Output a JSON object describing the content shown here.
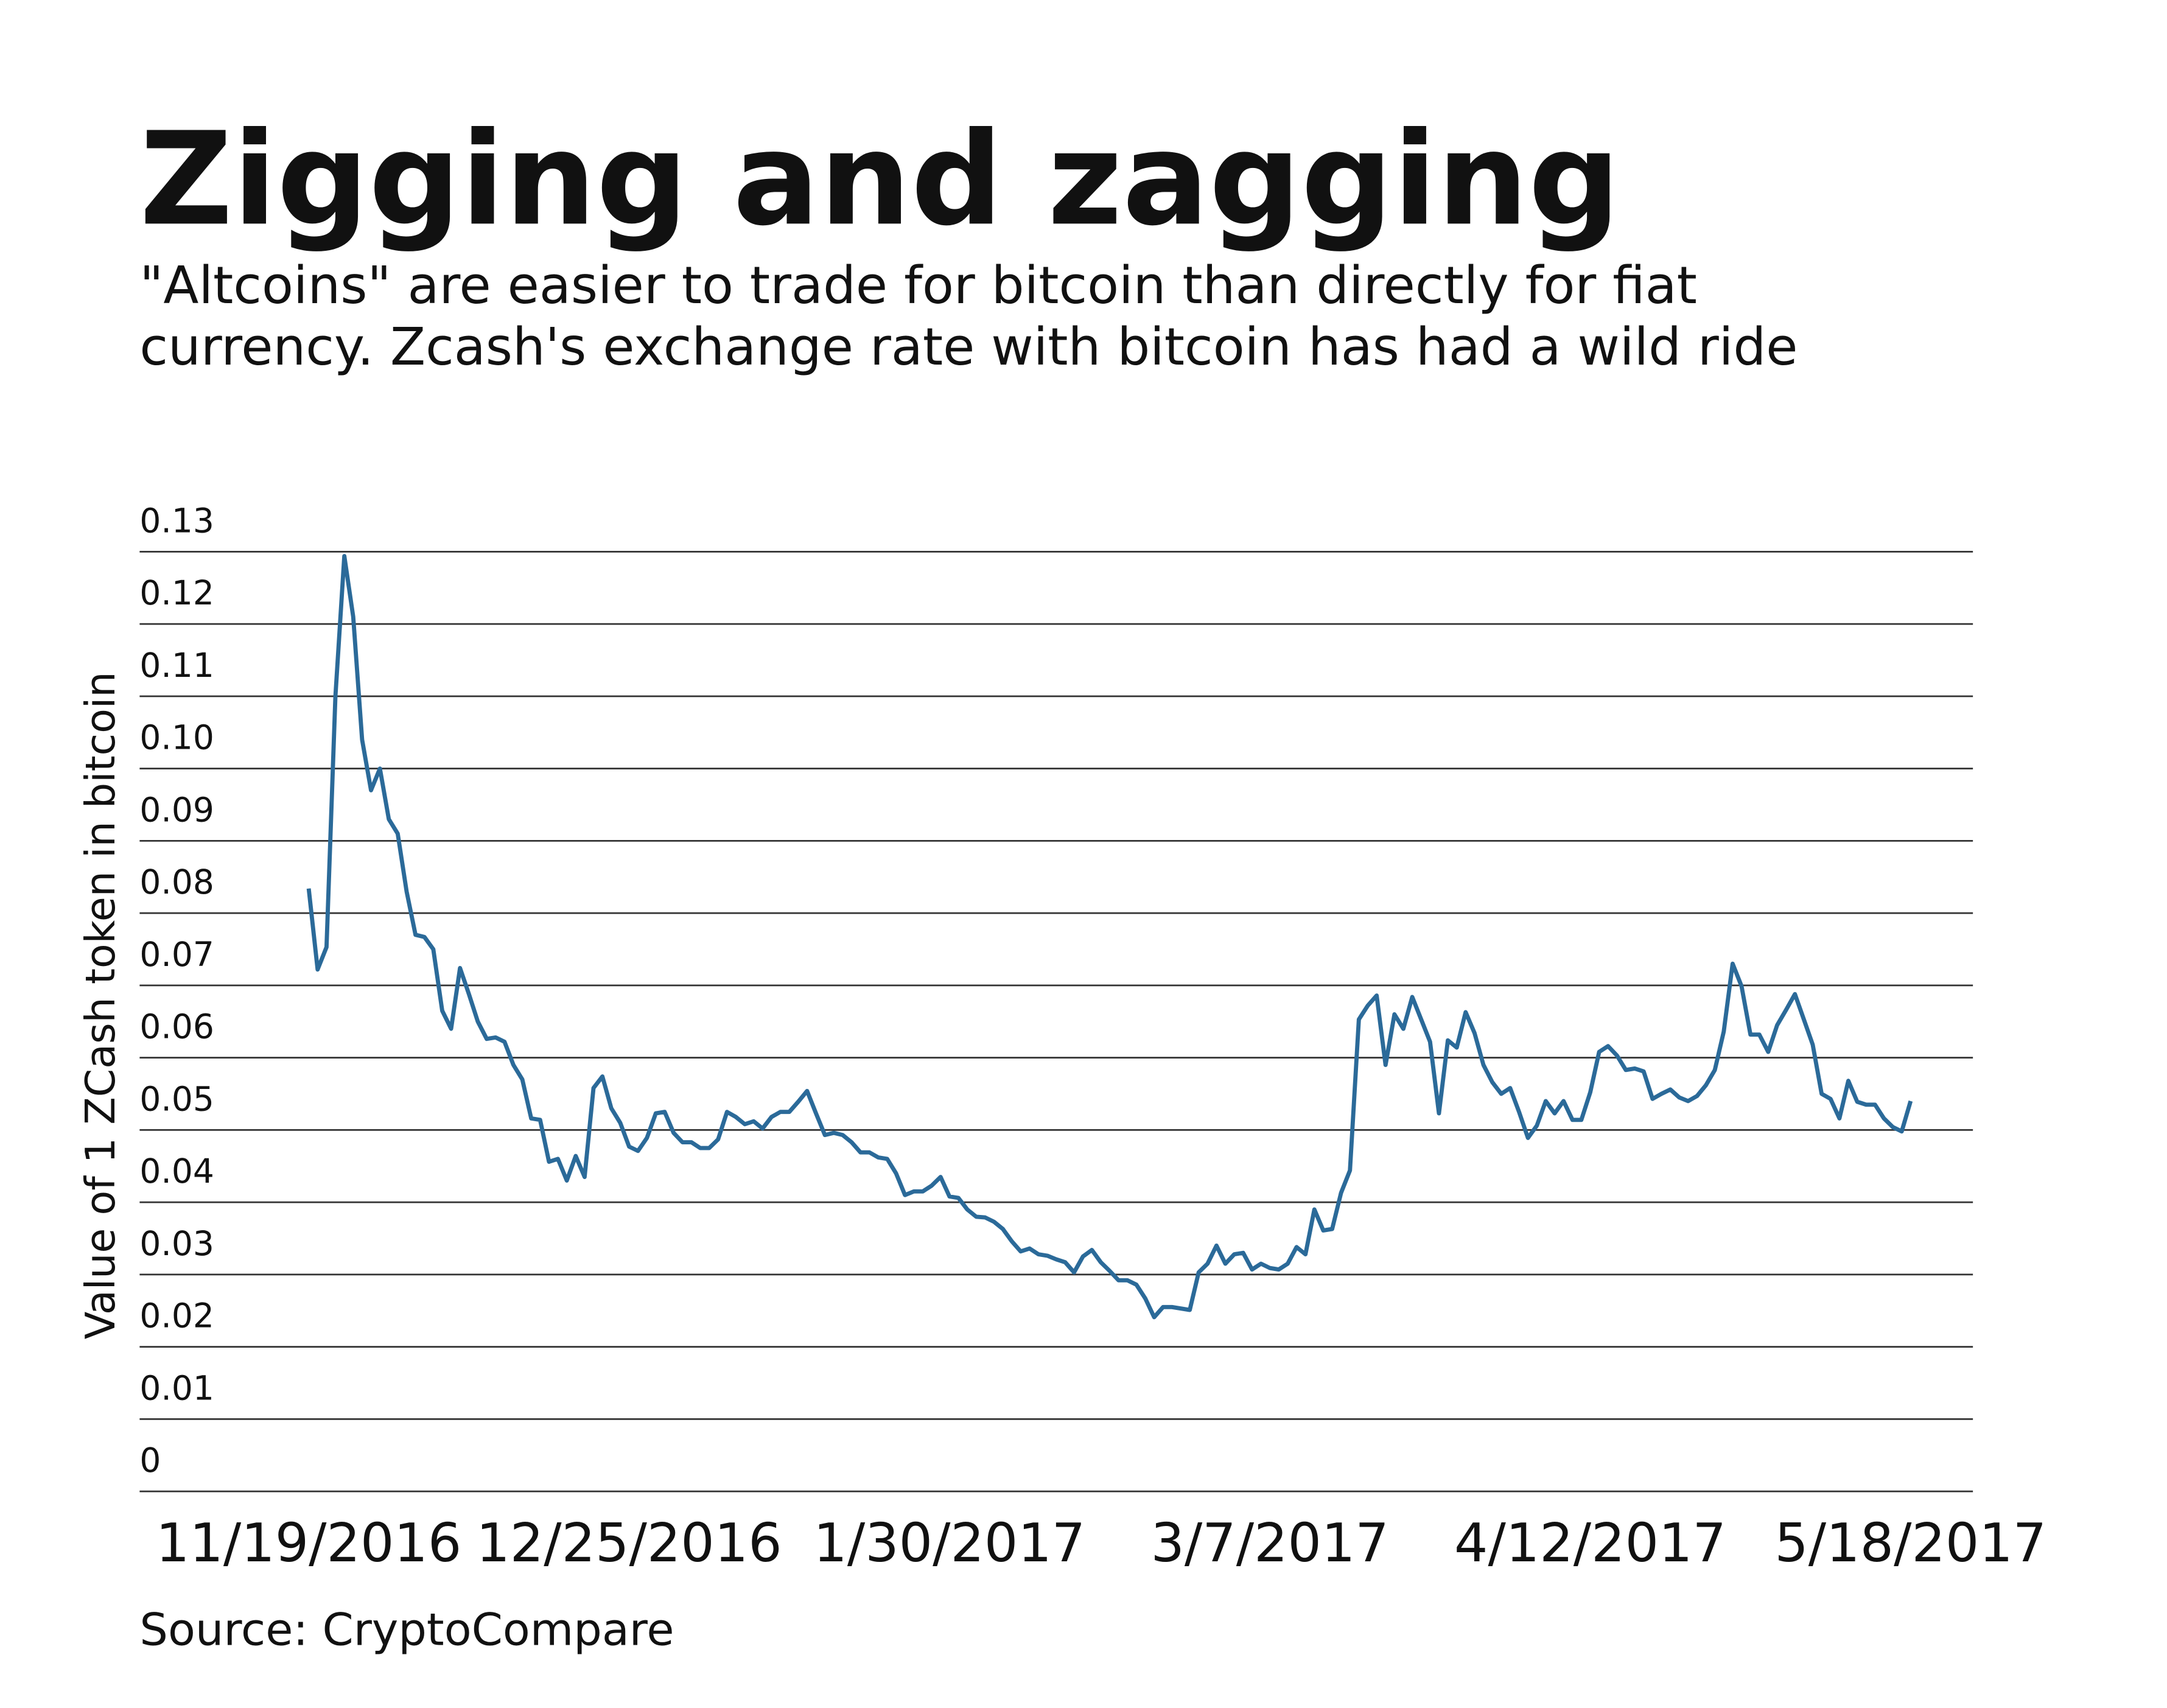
{
  "chart_data": {
    "type": "line",
    "title": "Zigging and zagging",
    "subtitle": [
      "\"Altcoins\" are easier to trade for bitcoin than directly for fiat",
      "currency. Zcash's exchange rate with bitcoin has had a wild ride"
    ],
    "y_label": "Value of 1 ZCash token in bitcoin",
    "source": "Source: CryptoCompare",
    "color": "#2b6a99",
    "grid": true,
    "xlim": [
      "2016-10-31",
      "2017-05-25"
    ],
    "xticks": [
      {
        "value": "2016-11-19",
        "label": "11/19/2016"
      },
      {
        "value": "2016-12-25",
        "label": "12/25/2016"
      },
      {
        "value": "2017-01-30",
        "label": "1/30/2017"
      },
      {
        "value": "2017-03-07",
        "label": "3/7/2017"
      },
      {
        "value": "2017-04-12",
        "label": "4/12/2017"
      },
      {
        "value": "2017-05-18",
        "label": "5/18/2017"
      }
    ],
    "ylim": [
      0,
      0.13
    ],
    "yticks": [
      0,
      0.01,
      0.02,
      0.03,
      0.04,
      0.05,
      0.06,
      0.07,
      0.08,
      0.09,
      {
        "value": 0.1,
        "label": "0.10"
      },
      0.11,
      0.12,
      0.13
    ],
    "x": [
      "2016-11-19",
      "2016-11-20",
      "2016-11-21",
      "2016-11-22",
      "2016-11-23",
      "2016-11-24",
      "2016-11-25",
      "2016-11-26",
      "2016-11-27",
      "2016-11-28",
      "2016-11-29",
      "2016-11-30",
      "2016-12-01",
      "2016-12-02",
      "2016-12-03",
      "2016-12-04",
      "2016-12-05",
      "2016-12-06",
      "2016-12-07",
      "2016-12-08",
      "2016-12-09",
      "2016-12-10",
      "2016-12-11",
      "2016-12-12",
      "2016-12-13",
      "2016-12-14",
      "2016-12-15",
      "2016-12-16",
      "2016-12-17",
      "2016-12-18",
      "2016-12-19",
      "2016-12-20",
      "2016-12-21",
      "2016-12-22",
      "2016-12-23",
      "2016-12-24",
      "2016-12-25",
      "2016-12-26",
      "2016-12-27",
      "2016-12-28",
      "2016-12-29",
      "2016-12-30",
      "2016-12-31",
      "2017-01-01",
      "2017-01-02",
      "2017-01-03",
      "2017-01-04",
      "2017-01-05",
      "2017-01-06",
      "2017-01-07",
      "2017-01-08",
      "2017-01-09",
      "2017-01-10",
      "2017-01-11",
      "2017-01-12",
      "2017-01-13",
      "2017-01-14",
      "2017-01-15",
      "2017-01-16",
      "2017-01-17",
      "2017-01-18",
      "2017-01-19",
      "2017-01-20",
      "2017-01-21",
      "2017-01-22",
      "2017-01-23",
      "2017-01-24",
      "2017-01-25",
      "2017-01-26",
      "2017-01-27",
      "2017-01-28",
      "2017-01-29",
      "2017-01-30",
      "2017-01-31",
      "2017-02-01",
      "2017-02-02",
      "2017-02-03",
      "2017-02-04",
      "2017-02-05",
      "2017-02-06",
      "2017-02-07",
      "2017-02-08",
      "2017-02-09",
      "2017-02-10",
      "2017-02-11",
      "2017-02-12",
      "2017-02-13",
      "2017-02-14",
      "2017-02-15",
      "2017-02-16",
      "2017-02-17",
      "2017-02-18",
      "2017-02-19",
      "2017-02-20",
      "2017-02-21",
      "2017-02-22",
      "2017-02-23",
      "2017-02-24",
      "2017-02-25",
      "2017-02-26",
      "2017-02-27",
      "2017-02-28",
      "2017-03-01",
      "2017-03-02",
      "2017-03-03",
      "2017-03-04",
      "2017-03-05",
      "2017-03-06",
      "2017-03-07",
      "2017-03-08",
      "2017-03-09",
      "2017-03-10",
      "2017-03-11",
      "2017-03-12",
      "2017-03-13",
      "2017-03-14",
      "2017-03-15",
      "2017-03-16",
      "2017-03-17",
      "2017-03-18",
      "2017-03-19",
      "2017-03-20",
      "2017-03-21",
      "2017-03-22",
      "2017-03-23",
      "2017-03-24",
      "2017-03-25",
      "2017-03-26",
      "2017-03-27",
      "2017-03-28",
      "2017-03-29",
      "2017-03-30",
      "2017-03-31",
      "2017-04-01",
      "2017-04-02",
      "2017-04-03",
      "2017-04-04",
      "2017-04-05",
      "2017-04-06",
      "2017-04-07",
      "2017-04-08",
      "2017-04-09",
      "2017-04-10",
      "2017-04-11",
      "2017-04-12",
      "2017-04-13",
      "2017-04-14",
      "2017-04-15",
      "2017-04-16",
      "2017-04-17",
      "2017-04-18",
      "2017-04-19",
      "2017-04-20",
      "2017-04-21",
      "2017-04-22",
      "2017-04-23",
      "2017-04-24",
      "2017-04-25",
      "2017-04-26",
      "2017-04-27",
      "2017-04-28",
      "2017-04-29",
      "2017-04-30",
      "2017-05-01",
      "2017-05-02",
      "2017-05-03",
      "2017-05-04",
      "2017-05-05",
      "2017-05-06",
      "2017-05-07",
      "2017-05-08",
      "2017-05-09",
      "2017-05-10",
      "2017-05-11",
      "2017-05-12",
      "2017-05-13",
      "2017-05-14",
      "2017-05-15",
      "2017-05-16",
      "2017-05-17",
      "2017-05-18"
    ],
    "values": [
      0.0834,
      0.0722,
      0.0753,
      0.11,
      0.1294,
      0.121,
      0.104,
      0.097,
      0.1,
      0.093,
      0.091,
      0.083,
      0.077,
      0.0767,
      0.075,
      0.0665,
      0.064,
      0.0724,
      0.0688,
      0.065,
      0.0626,
      0.0628,
      0.0622,
      0.059,
      0.057,
      0.0516,
      0.0514,
      0.0456,
      0.046,
      0.043,
      0.0464,
      0.0435,
      0.0558,
      0.0574,
      0.053,
      0.051,
      0.0477,
      0.0471,
      0.0489,
      0.0523,
      0.0525,
      0.0496,
      0.0483,
      0.0483,
      0.0475,
      0.0475,
      0.0487,
      0.0525,
      0.0518,
      0.0508,
      0.0512,
      0.0502,
      0.0518,
      0.0525,
      0.0525,
      0.0539,
      0.0554,
      0.0523,
      0.0493,
      0.0496,
      0.0493,
      0.0483,
      0.0469,
      0.0469,
      0.0462,
      0.046,
      0.044,
      0.041,
      0.0415,
      0.0415,
      0.0423,
      0.0435,
      0.0408,
      0.0406,
      0.039,
      0.038,
      0.0379,
      0.0373,
      0.0363,
      0.0346,
      0.0332,
      0.0336,
      0.0328,
      0.0326,
      0.0321,
      0.0317,
      0.0303,
      0.0325,
      0.0334,
      0.0317,
      0.0305,
      0.0292,
      0.0292,
      0.0286,
      0.0267,
      0.0241,
      0.0255,
      0.0255,
      0.0253,
      0.0251,
      0.0303,
      0.0315,
      0.034,
      0.0315,
      0.0328,
      0.033,
      0.0307,
      0.0315,
      0.0309,
      0.0307,
      0.0315,
      0.0338,
      0.0328,
      0.039,
      0.0361,
      0.0363,
      0.0413,
      0.0444,
      0.0653,
      0.0672,
      0.0686,
      0.059,
      0.066,
      0.064,
      0.0684,
      0.0653,
      0.0622,
      0.0523,
      0.0624,
      0.0614,
      0.0663,
      0.0634,
      0.059,
      0.0566,
      0.055,
      0.0558,
      0.0525,
      0.0489,
      0.0506,
      0.054,
      0.0523,
      0.054,
      0.0514,
      0.0514,
      0.0552,
      0.0608,
      0.0616,
      0.0603,
      0.0583,
      0.0585,
      0.0581,
      0.0543,
      0.055,
      0.0556,
      0.0545,
      0.054,
      0.0547,
      0.0562,
      0.0583,
      0.0636,
      0.073,
      0.0699,
      0.0632,
      0.0632,
      0.0608,
      0.0645,
      0.0666,
      0.0688,
      0.0653,
      0.0618,
      0.055,
      0.0543,
      0.0516,
      0.0568,
      0.0539,
      0.0535,
      0.0535,
      0.0516,
      0.0504,
      0.0498,
      0.054
    ]
  }
}
